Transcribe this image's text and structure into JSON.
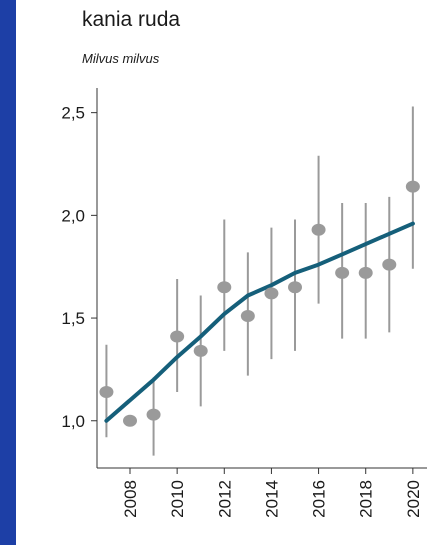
{
  "chart_data": {
    "type": "line",
    "title": "kania ruda",
    "subtitle": "Milvus milvus",
    "xlabel": "",
    "ylabel": "",
    "x_range": [
      2006.6,
      2020.6
    ],
    "ylim": [
      0.77,
      2.62
    ],
    "x_ticks": [
      2008,
      2010,
      2012,
      2014,
      2016,
      2018,
      2020
    ],
    "y_ticks": [
      {
        "value": 1.0,
        "label": "1,0"
      },
      {
        "value": 1.5,
        "label": "1,5"
      },
      {
        "value": 2.0,
        "label": "2,0"
      },
      {
        "value": 2.5,
        "label": "2,5"
      }
    ],
    "grid": false,
    "series": [
      {
        "kind": "points_with_error_bars",
        "color": "#9a9a9a",
        "points": [
          {
            "x": 2007,
            "y": 1.14,
            "low": 0.92,
            "high": 1.37
          },
          {
            "x": 2008,
            "y": 1.0,
            "low": 1.0,
            "high": 1.0
          },
          {
            "x": 2009,
            "y": 1.03,
            "low": 0.83,
            "high": 1.21
          },
          {
            "x": 2010,
            "y": 1.41,
            "low": 1.14,
            "high": 1.69
          },
          {
            "x": 2011,
            "y": 1.34,
            "low": 1.07,
            "high": 1.61
          },
          {
            "x": 2012,
            "y": 1.65,
            "low": 1.34,
            "high": 1.98
          },
          {
            "x": 2013,
            "y": 1.51,
            "low": 1.22,
            "high": 1.82
          },
          {
            "x": 2014,
            "y": 1.62,
            "low": 1.3,
            "high": 1.94
          },
          {
            "x": 2015,
            "y": 1.65,
            "low": 1.34,
            "high": 1.98
          },
          {
            "x": 2016,
            "y": 1.93,
            "low": 1.57,
            "high": 2.29
          },
          {
            "x": 2017,
            "y": 1.72,
            "low": 1.4,
            "high": 2.06
          },
          {
            "x": 2018,
            "y": 1.72,
            "low": 1.4,
            "high": 2.06
          },
          {
            "x": 2019,
            "y": 1.76,
            "low": 1.43,
            "high": 2.09
          },
          {
            "x": 2020,
            "y": 2.14,
            "low": 1.74,
            "high": 2.53
          }
        ]
      },
      {
        "kind": "trend_line",
        "color": "#155f7a",
        "x": [
          2007,
          2008,
          2009,
          2010,
          2011,
          2012,
          2013,
          2014,
          2015,
          2016,
          2017,
          2018,
          2019,
          2020
        ],
        "y": [
          1.0,
          1.1,
          1.2,
          1.31,
          1.41,
          1.52,
          1.61,
          1.66,
          1.72,
          1.76,
          1.81,
          1.86,
          1.91,
          1.96
        ]
      }
    ]
  }
}
